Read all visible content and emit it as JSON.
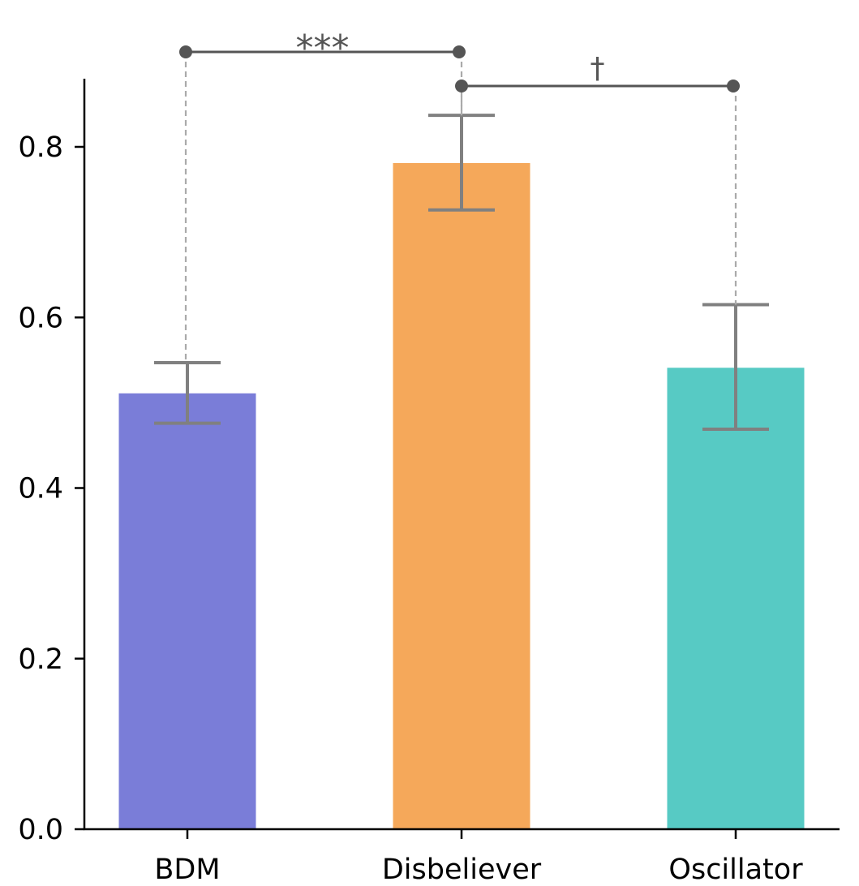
{
  "chart_data": {
    "type": "bar",
    "title": "",
    "xlabel": "",
    "ylabel": "",
    "categories": [
      "BDM",
      "Disbeliever",
      "Oscillator"
    ],
    "values": [
      0.511,
      0.781,
      0.541
    ],
    "error_low": [
      0.476,
      0.726,
      0.469
    ],
    "error_high": [
      0.547,
      0.837,
      0.615
    ],
    "colors": [
      "#7a7dd8",
      "#f5a85a",
      "#57cac4"
    ],
    "error_color": "#808080",
    "ylim": [
      0,
      0.88
    ],
    "yticks": [
      "0.0",
      "0.2",
      "0.4",
      "0.6",
      "0.8"
    ],
    "ytick_values": [
      0.0,
      0.2,
      0.4,
      0.6,
      0.8
    ],
    "grid": false,
    "legend": "none",
    "significance": [
      {
        "from": "BDM",
        "to": "Disbeliever",
        "label": "***"
      },
      {
        "from": "Disbeliever",
        "to": "Oscillator",
        "label": "†"
      }
    ]
  }
}
